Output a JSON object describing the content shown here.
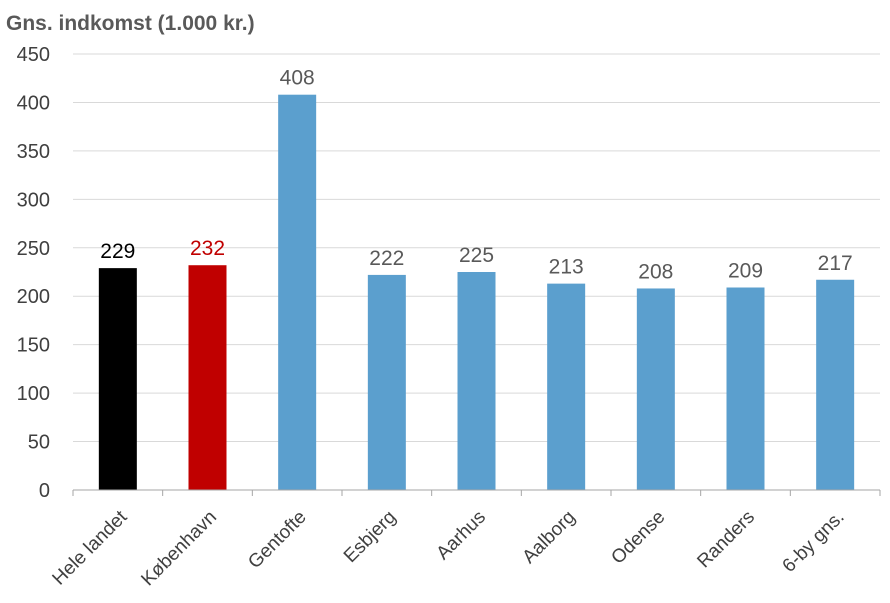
{
  "chart_data": {
    "type": "bar",
    "title": "Gns. indkomst (1.000 kr.)",
    "xlabel": "",
    "ylabel": "",
    "ylim": [
      0,
      450
    ],
    "ytick_step": 50,
    "categories": [
      "Hele landet",
      "København",
      "Gentofte",
      "Esbjerg",
      "Aarhus",
      "Aalborg",
      "Odense",
      "Randers",
      "6-by gns."
    ],
    "values": [
      229,
      232,
      408,
      222,
      225,
      213,
      208,
      209,
      217
    ],
    "bar_colors": [
      "#000000",
      "#c00000",
      "#5b9fce",
      "#5b9fce",
      "#5b9fce",
      "#5b9fce",
      "#5b9fce",
      "#5b9fce",
      "#5b9fce"
    ],
    "label_colors": [
      "#000000",
      "#c00000",
      "#595959",
      "#595959",
      "#595959",
      "#595959",
      "#595959",
      "#595959",
      "#595959"
    ],
    "grid": true,
    "grid_color": "#d9d9d9",
    "axis_color": "#a6a6a6",
    "legend": "none"
  }
}
